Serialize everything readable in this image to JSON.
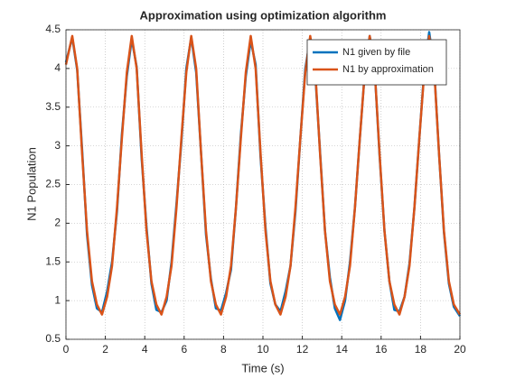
{
  "chart_data": {
    "type": "line",
    "title": "Approximation using optimization algorithm",
    "xlabel": "Time (s)",
    "ylabel": "N1 Population",
    "x": [
      0,
      0.32,
      0.57,
      0.82,
      1.07,
      1.32,
      1.57,
      1.83,
      2.09,
      2.34,
      2.59,
      2.84,
      3.09,
      3.34,
      3.59,
      3.84,
      4.09,
      4.34,
      4.59,
      4.85,
      5.11,
      5.36,
      5.61,
      5.86,
      6.11,
      6.36,
      6.61,
      6.86,
      7.11,
      7.36,
      7.61,
      7.87,
      8.13,
      8.38,
      8.63,
      8.88,
      9.13,
      9.38,
      9.63,
      9.88,
      10.13,
      10.38,
      10.63,
      10.89,
      11.15,
      11.4,
      11.65,
      11.9,
      12.15,
      12.4,
      12.65,
      12.9,
      13.15,
      13.4,
      13.65,
      13.91,
      14.17,
      14.42,
      14.67,
      14.92,
      15.17,
      15.42,
      15.67,
      15.92,
      16.17,
      16.42,
      16.67,
      16.93,
      17.19,
      17.44,
      17.69,
      17.94,
      18.19,
      18.44,
      18.69,
      18.94,
      19.19,
      19.44,
      19.69,
      20
    ],
    "series": [
      {
        "name": "N1 given by file",
        "color": "#0072BD",
        "values": [
          4.08,
          4.4,
          3.98,
          2.95,
          1.85,
          1.2,
          0.9,
          0.85,
          1.12,
          1.5,
          2.15,
          3.15,
          3.9,
          4.38,
          4.02,
          2.85,
          1.95,
          1.22,
          0.88,
          0.85,
          1.0,
          1.5,
          2.25,
          3.05,
          4.0,
          4.4,
          3.95,
          2.9,
          1.85,
          1.28,
          0.9,
          0.87,
          1.1,
          1.4,
          2.2,
          3.15,
          3.9,
          4.36,
          4.05,
          2.85,
          1.95,
          1.22,
          0.95,
          0.86,
          1.12,
          1.45,
          2.15,
          3.1,
          4.0,
          4.38,
          3.95,
          2.92,
          1.9,
          1.3,
          0.9,
          0.75,
          1.0,
          1.5,
          2.2,
          3.1,
          3.95,
          4.42,
          4.0,
          2.88,
          1.9,
          1.25,
          0.88,
          0.86,
          1.05,
          1.48,
          2.2,
          3.1,
          3.98,
          4.47,
          4.02,
          2.9,
          1.88,
          1.22,
          0.92,
          0.8
        ]
      },
      {
        "name": "N1 by approximation",
        "color": "#D95319",
        "values": [
          4.05,
          4.42,
          4.0,
          2.9,
          1.9,
          1.25,
          0.95,
          0.82,
          1.05,
          1.45,
          2.2,
          3.1,
          3.95,
          4.42,
          4.0,
          2.9,
          1.9,
          1.25,
          0.95,
          0.82,
          1.05,
          1.45,
          2.2,
          3.1,
          3.95,
          4.42,
          4.0,
          2.9,
          1.9,
          1.25,
          0.95,
          0.82,
          1.05,
          1.45,
          2.2,
          3.1,
          3.95,
          4.42,
          4.0,
          2.9,
          1.9,
          1.25,
          0.95,
          0.82,
          1.05,
          1.45,
          2.2,
          3.1,
          3.95,
          4.42,
          4.0,
          2.9,
          1.9,
          1.25,
          0.95,
          0.82,
          1.05,
          1.45,
          2.2,
          3.1,
          3.95,
          4.42,
          4.0,
          2.9,
          1.9,
          1.25,
          0.95,
          0.82,
          1.05,
          1.45,
          2.2,
          3.1,
          3.95,
          4.42,
          4.0,
          2.9,
          1.9,
          1.25,
          0.95,
          0.82
        ]
      }
    ],
    "xlim": [
      0,
      20
    ],
    "xticks": [
      0,
      2,
      4,
      6,
      8,
      10,
      12,
      14,
      16,
      18,
      20
    ],
    "ylim": [
      0.5,
      4.5
    ],
    "yticks": [
      0.5,
      1,
      1.5,
      2,
      2.5,
      3,
      3.5,
      4,
      4.5
    ],
    "grid": true,
    "legend": "northeast"
  }
}
